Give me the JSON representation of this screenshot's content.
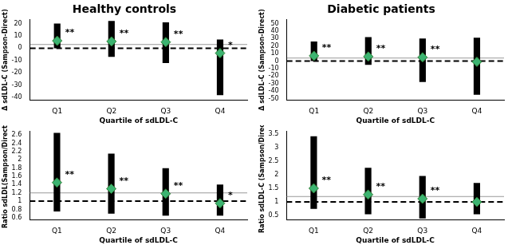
{
  "chart_data": [
    {
      "type": "strip",
      "title": "Healthy controls",
      "categories": [
        "Q1",
        "Q2",
        "Q3",
        "Q4"
      ],
      "series": [
        {
          "type": "range",
          "color": "#000000",
          "values": [
            [
              0,
              20
            ],
            [
              -7,
              22
            ],
            [
              -12,
              21
            ],
            [
              -38,
              7
            ]
          ]
        },
        {
          "type": "mean",
          "color": "#3cb371",
          "marker": "diamond",
          "values": [
            6,
            5.5,
            5,
            -4
          ]
        }
      ],
      "significance": [
        "**",
        "**",
        "**",
        "*"
      ],
      "reference_lines": [
        {
          "value": 0,
          "line_style": "dashed",
          "color": "#000000"
        },
        {
          "value": 3,
          "line_style": "solid",
          "color": "#999999"
        }
      ],
      "x_label": "Quartile of sdLDL-C",
      "y_label": "Δ sdLDL-C (Sampson-Direct)",
      "ylim": [
        -42,
        23
      ],
      "yticks": [
        -40,
        -30,
        -20,
        -10,
        0,
        10,
        20
      ],
      "grid": false
    },
    {
      "type": "strip",
      "title": "Diabetic patients",
      "categories": [
        "Q1",
        "Q2",
        "Q3",
        "Q4"
      ],
      "series": [
        {
          "type": "range",
          "color": "#000000",
          "values": [
            [
              0,
              26
            ],
            [
              -5,
              32
            ],
            [
              -28,
              30
            ],
            [
              -45,
              31
            ]
          ]
        },
        {
          "type": "mean",
          "color": "#3cb371",
          "marker": "diamond",
          "values": [
            7,
            6,
            5,
            -1
          ]
        }
      ],
      "significance": [
        "**",
        "**",
        "**",
        null
      ],
      "reference_lines": [
        {
          "value": 0,
          "line_style": "dashed",
          "color": "#000000"
        },
        {
          "value": 4,
          "line_style": "solid",
          "color": "#999999"
        }
      ],
      "x_label": "Quartile of sdLDL-C",
      "y_label": "Δ sdLDL-C (Sampson-Direct)",
      "ylim": [
        -52,
        55
      ],
      "yticks": [
        -50,
        -40,
        -30,
        -20,
        -10,
        0,
        10,
        20,
        30,
        40,
        50
      ],
      "grid": false
    },
    {
      "type": "strip",
      "categories": [
        "Q1",
        "Q2",
        "Q3",
        "Q4"
      ],
      "series": [
        {
          "type": "range",
          "color": "#000000",
          "values": [
            [
              0.75,
              2.65
            ],
            [
              0.7,
              2.15
            ],
            [
              0.65,
              1.8
            ],
            [
              0.65,
              1.4
            ]
          ]
        },
        {
          "type": "mean",
          "color": "#3cb371",
          "marker": "diamond",
          "values": [
            1.45,
            1.3,
            1.18,
            0.95
          ]
        }
      ],
      "significance": [
        "**",
        "**",
        "**",
        "*"
      ],
      "reference_lines": [
        {
          "value": 1,
          "line_style": "dashed",
          "color": "#000000"
        },
        {
          "value": 1.2,
          "line_style": "solid",
          "color": "#999999"
        }
      ],
      "x_label": "Quartile of sdLDL-C",
      "y_label": "Ratio sdLDL(Sampson/Direct)",
      "ylim": [
        0.55,
        2.7
      ],
      "yticks": [
        0.6,
        0.8,
        1,
        1.2,
        1.4,
        1.6,
        1.8,
        2,
        2.2,
        2.4,
        2.6
      ],
      "grid": false
    },
    {
      "type": "strip",
      "categories": [
        "Q1",
        "Q2",
        "Q3",
        "Q4"
      ],
      "series": [
        {
          "type": "range",
          "color": "#000000",
          "values": [
            [
              0.75,
              3.4
            ],
            [
              0.55,
              2.25
            ],
            [
              0.4,
              1.95
            ],
            [
              0.55,
              1.7
            ]
          ]
        },
        {
          "type": "mean",
          "color": "#3cb371",
          "marker": "diamond",
          "values": [
            1.5,
            1.27,
            1.12,
            1.0
          ]
        }
      ],
      "significance": [
        "**",
        "**",
        "**",
        null
      ],
      "reference_lines": [
        {
          "value": 1,
          "line_style": "dashed",
          "color": "#000000"
        },
        {
          "value": 1.2,
          "line_style": "solid",
          "color": "#999999"
        }
      ],
      "x_label": "Quartile of sdLDL-C",
      "y_label": "Ratio sdLDL-C (Sampson/Direct)",
      "ylim": [
        0.35,
        3.6
      ],
      "yticks": [
        0.5,
        1,
        1.5,
        2,
        2.5,
        3,
        3.5
      ],
      "grid": false
    }
  ]
}
